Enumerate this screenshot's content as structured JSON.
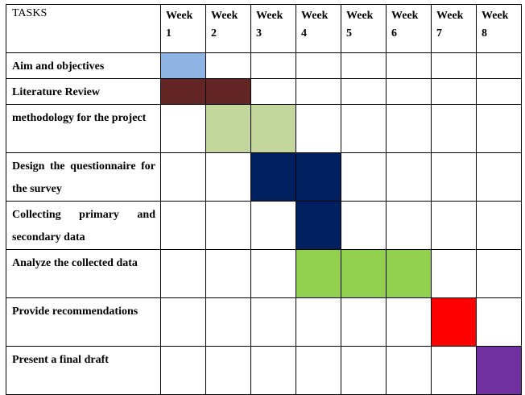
{
  "header": {
    "tasks_label": "TASKS",
    "weeks": [
      {
        "line1": "Week",
        "line2": "1"
      },
      {
        "line1": "Week",
        "line2": "2"
      },
      {
        "line1": "Week",
        "line2": "3"
      },
      {
        "line1": "Week",
        "line2": "4"
      },
      {
        "line1": "Week",
        "line2": "5"
      },
      {
        "line1": "Week",
        "line2": "6"
      },
      {
        "line1": "Week",
        "line2": "7"
      },
      {
        "line1": "Week",
        "line2": "8"
      }
    ]
  },
  "tasks": [
    {
      "label": "Aim and objectives",
      "color": "#8eb4e3",
      "weeks": [
        1
      ]
    },
    {
      "label": "Literature Review",
      "color": "#632523",
      "weeks": [
        1,
        2
      ]
    },
    {
      "label": "methodology for the project",
      "color": "#c3d69b",
      "weeks": [
        2,
        3
      ]
    },
    {
      "label": "Design the questionnaire for the survey",
      "color": "#002060",
      "weeks": [
        3,
        4
      ]
    },
    {
      "label": "Collecting primary and secondary data",
      "color": "#002060",
      "weeks": [
        4
      ]
    },
    {
      "label": "Analyze the collected data",
      "color": "#92d050",
      "weeks": [
        4,
        5,
        6
      ]
    },
    {
      "label": "Provide recommendations",
      "color": "#ff0000",
      "weeks": [
        7
      ]
    },
    {
      "label": "Present a final draft",
      "color": "#7030a0",
      "weeks": [
        8
      ]
    }
  ]
}
